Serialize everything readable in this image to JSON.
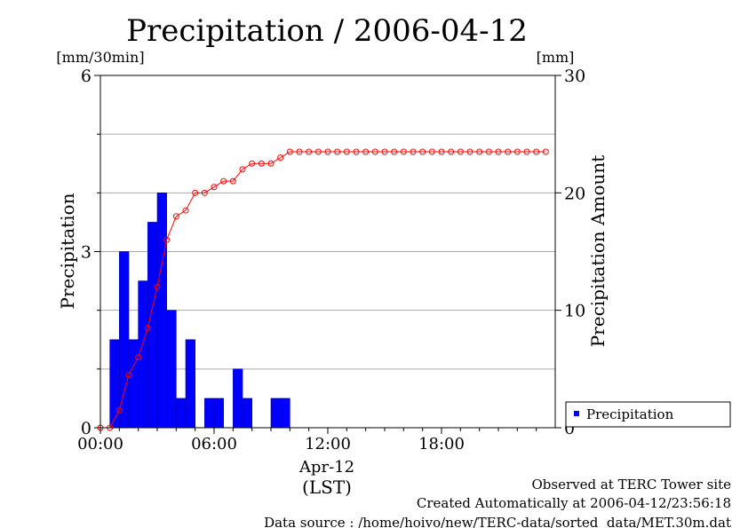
{
  "chart_data": {
    "type": "bar+line",
    "title": "Precipitation / 2006-04-12",
    "left_axis": {
      "label": "Precipitation",
      "unit": "[mm/30min]",
      "ticks": [
        0,
        3,
        6
      ],
      "range": [
        0,
        6
      ]
    },
    "right_axis": {
      "label": "Precipitation Amount",
      "unit": "[mm]",
      "ticks": [
        0,
        10,
        20,
        30
      ],
      "range": [
        0,
        30
      ]
    },
    "x_axis": {
      "ticks": [
        "00:00",
        "06:00",
        "12:00",
        "18:00"
      ],
      "date_label": "Apr-12",
      "tz_label": "(LST)",
      "range_hours": [
        0,
        24
      ]
    },
    "grid": "horizontal",
    "legend": {
      "position": "bottom-right",
      "entries": [
        "Precipitation"
      ]
    },
    "series": [
      {
        "name": "Precipitation",
        "type": "bar",
        "color": "#0000ff",
        "x_hours": [
          0.5,
          1.0,
          1.5,
          2.0,
          2.5,
          3.0,
          3.5,
          4.0,
          4.5,
          5.5,
          6.0,
          7.0,
          7.5,
          9.0,
          9.5
        ],
        "values": [
          1.5,
          3.0,
          1.5,
          2.5,
          3.5,
          4.0,
          2.0,
          0.5,
          1.5,
          0.5,
          0.5,
          1.0,
          0.5,
          0.5,
          0.5
        ]
      },
      {
        "name": "Precipitation Amount",
        "type": "line",
        "color": "#ff0000",
        "x_hours": [
          0,
          0.5,
          1.0,
          1.5,
          2.0,
          2.5,
          3.0,
          3.5,
          4.0,
          4.5,
          5.0,
          5.5,
          6.0,
          6.5,
          7.0,
          7.5,
          8.0,
          8.5,
          9.0,
          9.5,
          10.0,
          10.5,
          11.0,
          11.5,
          12.0,
          12.5,
          13.0,
          13.5,
          14.0,
          14.5,
          15.0,
          15.5,
          16.0,
          16.5,
          17.0,
          17.5,
          18.0,
          18.5,
          19.0,
          19.5,
          20.0,
          20.5,
          21.0,
          21.5,
          22.0,
          22.5,
          23.0,
          23.5
        ],
        "values": [
          0,
          0,
          1.5,
          4.5,
          6.0,
          8.5,
          12.0,
          16.0,
          18.0,
          18.5,
          20.0,
          20.0,
          20.5,
          21.0,
          21.0,
          22.0,
          22.5,
          22.5,
          22.5,
          23.0,
          23.5,
          23.5,
          23.5,
          23.5,
          23.5,
          23.5,
          23.5,
          23.5,
          23.5,
          23.5,
          23.5,
          23.5,
          23.5,
          23.5,
          23.5,
          23.5,
          23.5,
          23.5,
          23.5,
          23.5,
          23.5,
          23.5,
          23.5,
          23.5,
          23.5,
          23.5,
          23.5,
          23.5
        ]
      }
    ]
  },
  "footer": {
    "line1": "Observed at TERC Tower site",
    "line2": "Created Automatically at 2006-04-12/23:56:18",
    "line3": "Data source : /home/hoivo/new/TERC-data/sorted  data/MET.30m.dat"
  }
}
